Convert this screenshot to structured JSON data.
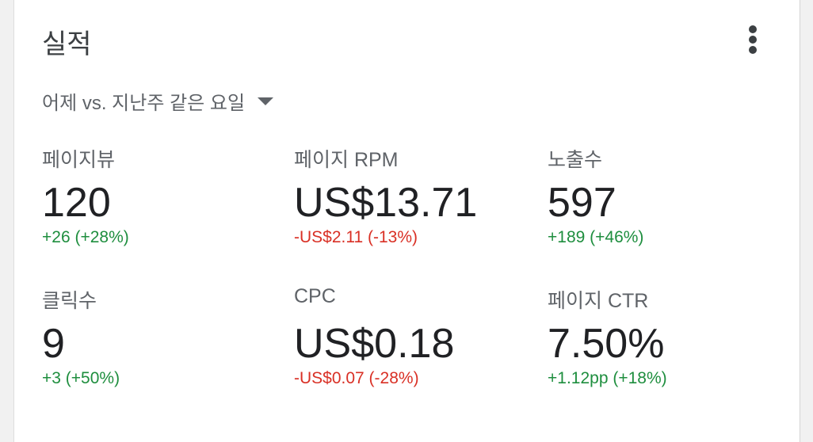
{
  "card": {
    "title": "실적",
    "more_icon": "more-vert-icon",
    "comparison": "어제 vs. 지난주 같은 요일",
    "colors": {
      "positive": "#1e8e3e",
      "negative": "#d93025"
    }
  },
  "metrics": [
    {
      "label": "페이지뷰",
      "value": "120",
      "change": "+26 (+28%)",
      "trend": "positive"
    },
    {
      "label": "페이지 RPM",
      "value": "US$13.71",
      "change": "-US$2.11 (-13%)",
      "trend": "negative"
    },
    {
      "label": "노출수",
      "value": "597",
      "change": "+189 (+46%)",
      "trend": "positive"
    },
    {
      "label": "클릭수",
      "value": "9",
      "change": "+3 (+50%)",
      "trend": "positive"
    },
    {
      "label": "CPC",
      "value": "US$0.18",
      "change": "-US$0.07 (-28%)",
      "trend": "negative"
    },
    {
      "label": "페이지 CTR",
      "value": "7.50%",
      "change": "+1.12pp (+18%)",
      "trend": "positive"
    }
  ]
}
